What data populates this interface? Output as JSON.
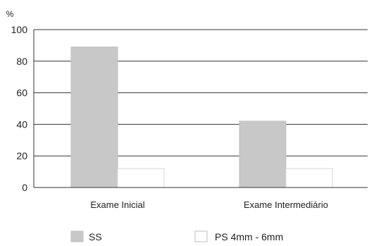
{
  "chart_data": {
    "type": "bar",
    "title": "",
    "xlabel": "",
    "ylabel": "%",
    "ylim": [
      0,
      100
    ],
    "yticks": [
      0,
      20,
      40,
      60,
      80,
      100
    ],
    "grid": true,
    "legend_position": "bottom",
    "categories": [
      "Exame Inicial",
      "Exame Intermediário"
    ],
    "series": [
      {
        "name": "SS",
        "values": [
          89,
          42
        ],
        "color": "#c8c8c8"
      },
      {
        "name": "PS 4mm - 6mm",
        "values": [
          12,
          12
        ],
        "color": "#ffffff"
      }
    ]
  }
}
